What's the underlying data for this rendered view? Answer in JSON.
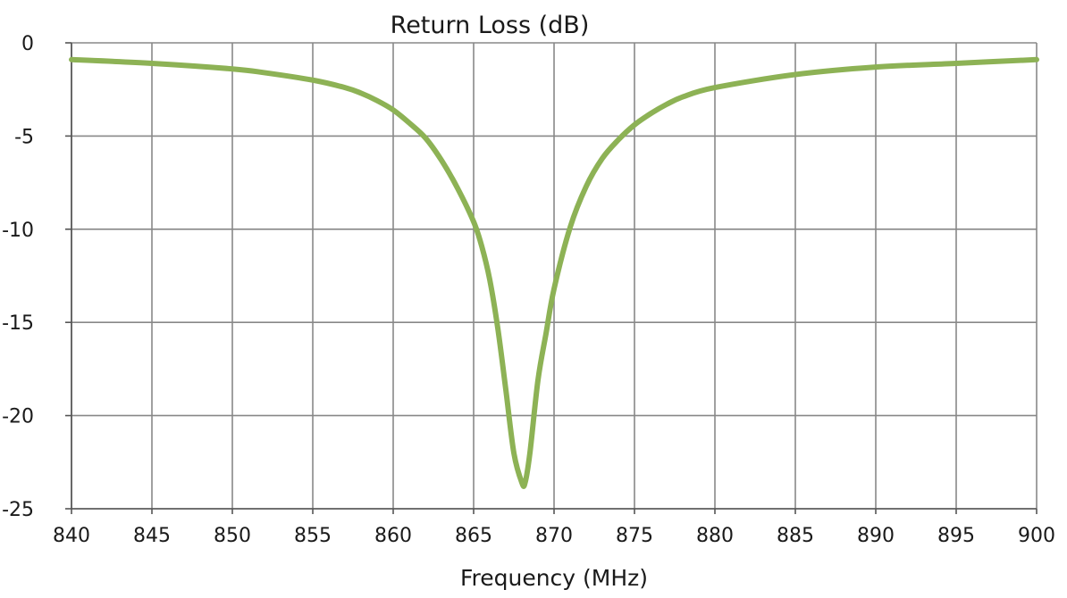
{
  "chart_data": {
    "type": "line",
    "title": "Return Loss (dB)",
    "xlabel": "Frequency (MHz)",
    "ylabel": "",
    "xlim": [
      840,
      900
    ],
    "ylim": [
      -25,
      0
    ],
    "x_ticks": [
      840,
      845,
      850,
      855,
      860,
      865,
      870,
      875,
      880,
      885,
      890,
      895,
      900
    ],
    "y_ticks": [
      0,
      -5,
      -10,
      -15,
      -20,
      -25
    ],
    "x_tick_labels": [
      "840",
      "845",
      "850",
      "855",
      "860",
      "865",
      "870",
      "875",
      "880",
      "885",
      "890",
      "895",
      "900"
    ],
    "y_tick_labels": [
      "0",
      "-5",
      "-10",
      "-15",
      "-20",
      "-25"
    ],
    "grid": true,
    "legend": "none",
    "series": [
      {
        "color": "#8DB255",
        "x": [
          840,
          845,
          850,
          852,
          855,
          857,
          858,
          859,
          860,
          861,
          862,
          863,
          864,
          865,
          865.5,
          866,
          866.5,
          867,
          867.5,
          868,
          868.2,
          868.5,
          869,
          869.5,
          870,
          871,
          872,
          873,
          874,
          875,
          876,
          877,
          878,
          880,
          885,
          890,
          895,
          900
        ],
        "y": [
          -0.9,
          -1.1,
          -1.4,
          -1.6,
          -2.0,
          -2.4,
          -2.7,
          -3.1,
          -3.6,
          -4.3,
          -5.1,
          -6.3,
          -7.8,
          -9.6,
          -10.9,
          -12.7,
          -15.3,
          -18.6,
          -22.0,
          -23.6,
          -23.6,
          -22.0,
          -18.1,
          -15.6,
          -13.2,
          -9.9,
          -7.7,
          -6.2,
          -5.2,
          -4.4,
          -3.8,
          -3.3,
          -2.9,
          -2.4,
          -1.7,
          -1.3,
          -1.1,
          -0.9
        ]
      }
    ]
  }
}
